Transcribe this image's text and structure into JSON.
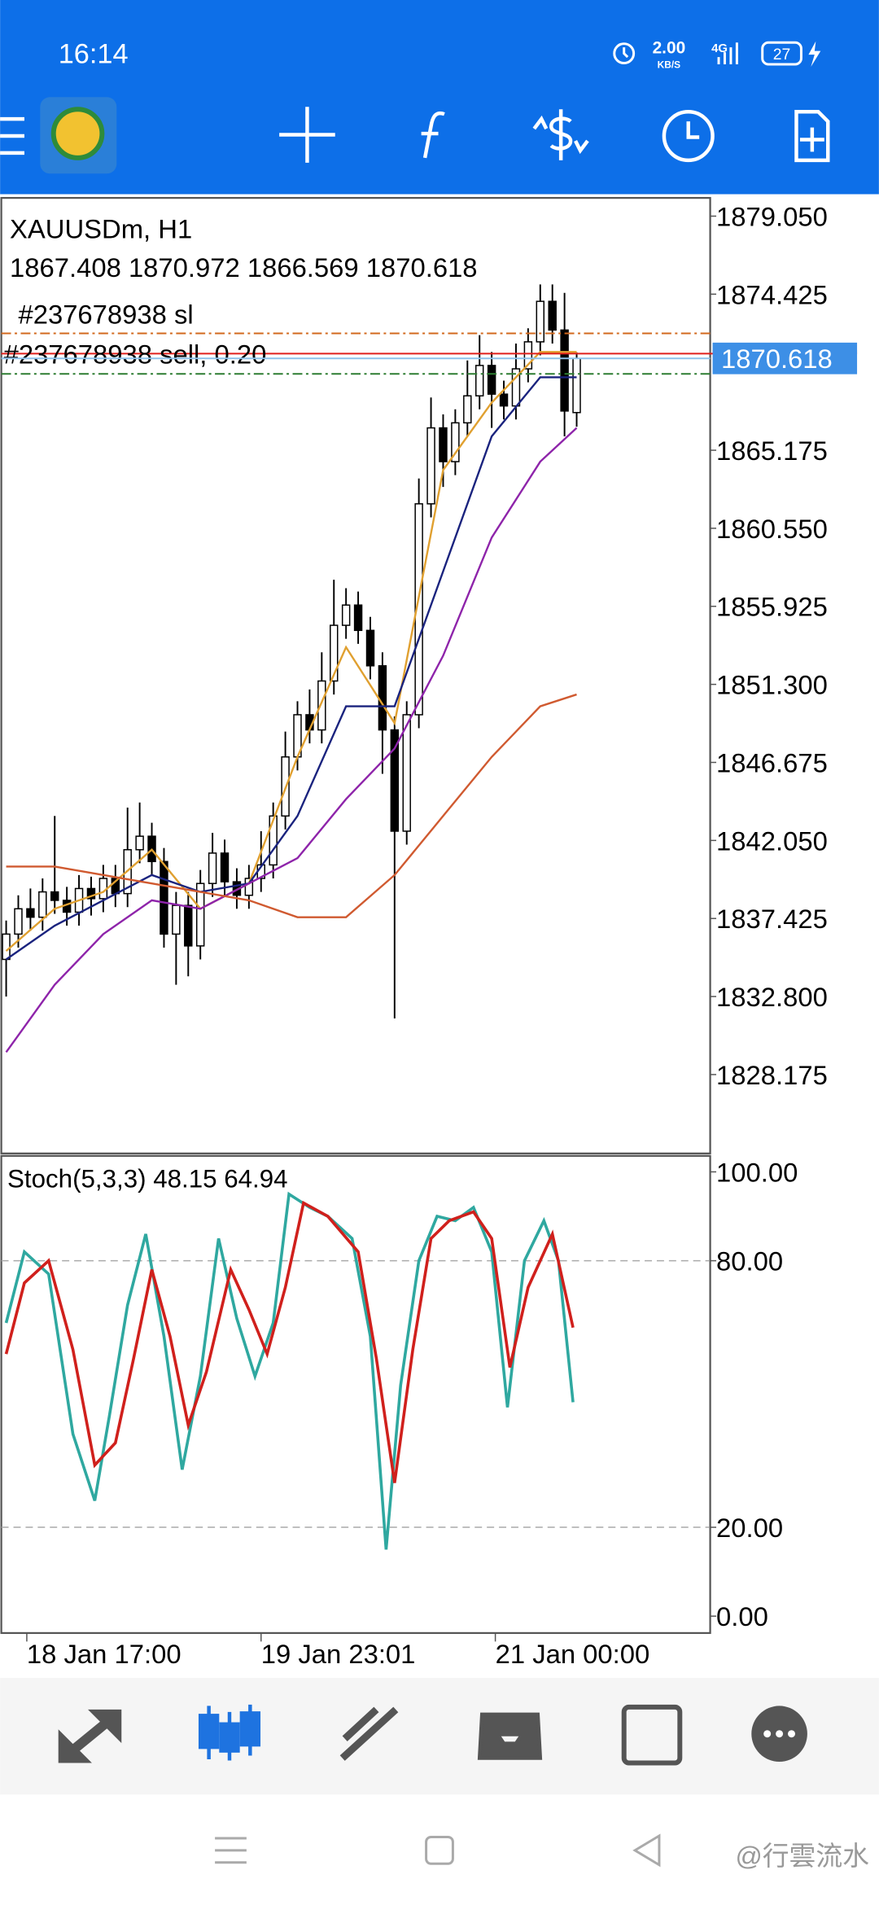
{
  "status_bar": {
    "time": "16:14",
    "speed": "2.00",
    "speed_unit": "KB/S",
    "network": "4G",
    "battery": "27"
  },
  "chart_data": {
    "type": "candlestick",
    "symbol": "XAUUSDm, H1",
    "ohlc_text": "1867.408 1870.972 1866.569 1870.618",
    "candles": [
      [
        1835.0,
        1837.3,
        1832.8,
        1836.5
      ],
      [
        1836.5,
        1838.8,
        1835.7,
        1838.0
      ],
      [
        1838.0,
        1839.2,
        1836.7,
        1837.5
      ],
      [
        1837.5,
        1839.8,
        1836.7,
        1839.0
      ],
      [
        1839.0,
        1843.5,
        1837.7,
        1838.5
      ],
      [
        1838.5,
        1839.3,
        1837.0,
        1837.8
      ],
      [
        1837.8,
        1840.0,
        1837.0,
        1839.2
      ],
      [
        1839.2,
        1839.9,
        1837.6,
        1838.6
      ],
      [
        1838.6,
        1840.6,
        1837.8,
        1839.8
      ],
      [
        1839.8,
        1840.6,
        1838.1,
        1838.9
      ],
      [
        1838.9,
        1844.0,
        1838.1,
        1841.5
      ],
      [
        1841.5,
        1844.3,
        1840.7,
        1842.3
      ],
      [
        1842.3,
        1843.1,
        1840.0,
        1840.8
      ],
      [
        1840.8,
        1841.6,
        1835.7,
        1836.5
      ],
      [
        1836.5,
        1839.0,
        1833.5,
        1838.2
      ],
      [
        1838.2,
        1839.0,
        1834.0,
        1835.8
      ],
      [
        1835.8,
        1840.3,
        1835.0,
        1839.5
      ],
      [
        1839.5,
        1842.5,
        1838.7,
        1841.3
      ],
      [
        1841.3,
        1842.1,
        1838.8,
        1839.6
      ],
      [
        1839.6,
        1840.4,
        1838.0,
        1838.8
      ],
      [
        1838.8,
        1840.6,
        1838.0,
        1839.8
      ],
      [
        1839.8,
        1842.6,
        1839.0,
        1840.6
      ],
      [
        1840.6,
        1844.3,
        1839.8,
        1843.5
      ],
      [
        1843.5,
        1848.5,
        1842.7,
        1847.0
      ],
      [
        1847.0,
        1850.3,
        1846.2,
        1849.5
      ],
      [
        1849.5,
        1851.0,
        1847.8,
        1848.6
      ],
      [
        1848.6,
        1853.2,
        1847.8,
        1851.5
      ],
      [
        1851.5,
        1857.5,
        1850.7,
        1854.8
      ],
      [
        1854.8,
        1857.0,
        1854.0,
        1856.0
      ],
      [
        1856.0,
        1856.8,
        1853.7,
        1854.5
      ],
      [
        1854.5,
        1855.3,
        1851.6,
        1852.4
      ],
      [
        1852.4,
        1853.2,
        1846.0,
        1848.6
      ],
      [
        1848.6,
        1849.4,
        1831.5,
        1842.6
      ],
      [
        1842.6,
        1850.3,
        1841.8,
        1849.5
      ],
      [
        1849.5,
        1863.5,
        1848.7,
        1862.0
      ],
      [
        1862.0,
        1868.3,
        1861.2,
        1866.5
      ],
      [
        1866.5,
        1867.3,
        1863.0,
        1864.5
      ],
      [
        1864.5,
        1867.6,
        1863.7,
        1866.8
      ],
      [
        1866.8,
        1870.5,
        1866.0,
        1868.4
      ],
      [
        1868.4,
        1872.0,
        1867.6,
        1870.2
      ],
      [
        1870.2,
        1871.0,
        1866.5,
        1868.5
      ],
      [
        1868.5,
        1869.3,
        1867.0,
        1867.8
      ],
      [
        1867.8,
        1871.5,
        1867.0,
        1870.0
      ],
      [
        1870.0,
        1872.4,
        1869.2,
        1871.6
      ],
      [
        1871.6,
        1875.0,
        1870.8,
        1874.0
      ],
      [
        1874.0,
        1875.0,
        1871.5,
        1872.3
      ],
      [
        1872.3,
        1874.5,
        1866.0,
        1867.5
      ],
      [
        1867.408,
        1870.972,
        1866.569,
        1870.618
      ]
    ],
    "ylim": [
      1823.5,
      1880.13
    ],
    "yticks": [
      {
        "value": 1879.05,
        "label": "1879.050"
      },
      {
        "value": 1874.425,
        "label": "1874.425"
      },
      {
        "value": 1865.175,
        "label": "1865.175"
      },
      {
        "value": 1860.55,
        "label": "1860.550"
      },
      {
        "value": 1855.925,
        "label": "1855.925"
      },
      {
        "value": 1851.3,
        "label": "1851.300"
      },
      {
        "value": 1846.675,
        "label": "1846.675"
      },
      {
        "value": 1842.05,
        "label": "1842.050"
      },
      {
        "value": 1837.425,
        "label": "1837.425"
      },
      {
        "value": 1832.8,
        "label": "1832.800"
      },
      {
        "value": 1828.175,
        "label": "1828.175"
      }
    ],
    "current_price": {
      "value": 1870.618,
      "label": "1870.618",
      "color": "#8ec1ea"
    },
    "levels": [
      {
        "name": "#237678938 sl",
        "price": 1872.1,
        "color": "#d2691e",
        "dash": true
      },
      {
        "name": "#237678938 sell, 0.20",
        "price": 1870.9,
        "color": "#e0201c",
        "dash": false
      },
      {
        "price": 1869.7,
        "color": "#2e7d32",
        "dash": true
      }
    ],
    "ma_index": [
      0,
      4,
      8,
      12,
      16,
      20,
      24,
      28,
      32,
      36,
      40,
      44,
      47
    ],
    "ma": [
      {
        "color": "#e0a030",
        "values": [
          1835.5,
          1838,
          1839,
          1841.5,
          1838,
          1839.5,
          1847,
          1853.5,
          1849,
          1864,
          1868,
          1871,
          1871
        ]
      },
      {
        "color": "#1a237e",
        "values": [
          1835,
          1837,
          1838.5,
          1840,
          1839,
          1839.5,
          1843.5,
          1850,
          1850,
          1858,
          1866,
          1869.5,
          1869.5
        ]
      },
      {
        "color": "#8e24aa",
        "values": [
          1829.5,
          1833.5,
          1836.5,
          1838.5,
          1838,
          1839.5,
          1841,
          1844.5,
          1847.5,
          1853,
          1860,
          1864.5,
          1866.5
        ]
      },
      {
        "color": "#d05a30",
        "values": [
          1840.5,
          1840.5,
          1840,
          1839.5,
          1839,
          1838.5,
          1837.5,
          1837.5,
          1840,
          1843.5,
          1847,
          1850,
          1850.7
        ]
      }
    ],
    "x_labels": [
      "18 Jan 17:00",
      "19 Jan 23:01",
      "21 Jan 00:00"
    ],
    "stochastic": {
      "label": "Stoch(5,3,3) 48.15 64.94",
      "ylim": [
        -3.8,
        103.6
      ],
      "yticks": [
        {
          "value": 100,
          "label": "100.00"
        },
        {
          "value": 80,
          "label": "80.00"
        },
        {
          "value": 20,
          "label": "20.00"
        },
        {
          "value": 0,
          "label": "0.00"
        }
      ],
      "dashed_levels": [
        80,
        20
      ],
      "series": [
        {
          "color": "#2fa8a0",
          "x": [
            0,
            1.5,
            3.5,
            5.5,
            7.3,
            8.5,
            10,
            11.5,
            13,
            14.5,
            16,
            17.5,
            19,
            20.5,
            22,
            23.3,
            25,
            26.5,
            28.5,
            30,
            31.3,
            32.5,
            34,
            35.5,
            37,
            38.5,
            40,
            41.3,
            42.7,
            44.3,
            45.5,
            46.7
          ],
          "values": [
            66,
            82,
            77,
            41,
            26,
            45,
            70,
            86,
            63,
            33,
            54,
            85,
            67,
            54,
            66,
            95,
            92,
            90,
            85,
            63,
            15,
            52,
            80,
            90,
            89,
            92,
            82,
            47,
            80,
            89,
            80,
            48.15
          ]
        },
        {
          "color": "#d0201c",
          "x": [
            0,
            1.5,
            3.5,
            5.5,
            7.3,
            9,
            10.5,
            12,
            13.5,
            15,
            16.5,
            18.5,
            20,
            21.5,
            23,
            24.5,
            26.5,
            29,
            30.5,
            32,
            33.5,
            35,
            36.5,
            38.5,
            40,
            41.5,
            43,
            45,
            46.7
          ],
          "values": [
            59,
            75,
            80,
            60,
            34,
            39,
            58,
            78,
            63,
            43,
            55,
            78,
            69,
            59,
            74,
            93,
            90,
            82,
            58,
            30,
            60,
            85,
            89,
            91,
            85,
            56,
            74,
            86,
            64.94
          ]
        }
      ]
    }
  },
  "watermark": "@行雲流水"
}
